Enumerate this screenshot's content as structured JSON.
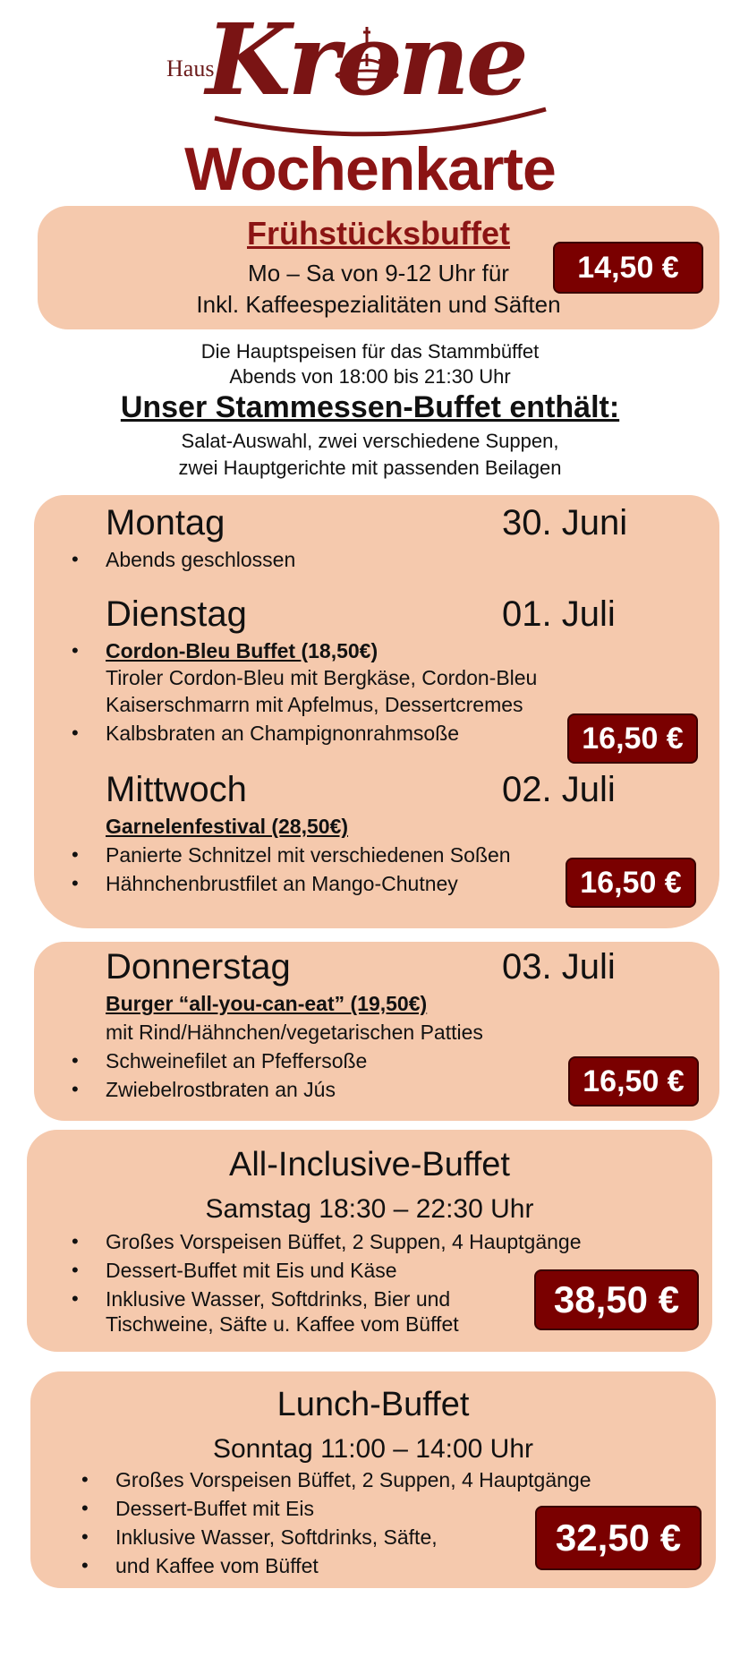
{
  "logo": {
    "small": "Haus",
    "word": "Krone"
  },
  "title": "Wochenkarte",
  "breakfast": {
    "title": "Frühstücksbuffet",
    "line1": "Mo – Sa von 9-12 Uhr für",
    "line2": "Inkl. Kaffeespezialitäten und Säften",
    "price": "14,50 €"
  },
  "info": {
    "line1": "Die Hauptspeisen für das Stammbüffet",
    "line2": "Abends von 18:00 bis 21:30 Uhr"
  },
  "stamm": {
    "title": "Unser Stammessen-Buffet enthält:",
    "line1": "Salat-Auswahl, zwei verschiedene Suppen,",
    "line2": "zwei Hauptgerichte mit passenden Beilagen"
  },
  "monday": {
    "day": "Montag",
    "date": "30. Juni",
    "item1": "Abends geschlossen"
  },
  "tuesday": {
    "day": "Dienstag",
    "date": "01. Juli",
    "special_name": "Cordon-Bleu Buffet ",
    "special_price": " (18,50€)",
    "desc1": "Tiroler Cordon-Bleu mit Bergkäse, Cordon-Bleu",
    "desc2": "Kaiserschmarrn mit Apfelmus, Dessertcremes",
    "item2": "Kalbsbraten an Champignonrahmsoße",
    "price": "16,50 €"
  },
  "wednesday": {
    "day": "Mittwoch",
    "date": "02. Juli",
    "special": "Garnelenfestival (28,50€)",
    "item1": "Panierte Schnitzel mit verschiedenen Soßen",
    "item2": "Hähnchenbrustfilet an Mango-Chutney",
    "price": "16,50 €"
  },
  "thursday": {
    "day": "Donnerstag",
    "date": "03. Juli",
    "special": "Burger “all-you-can-eat” (19,50€)",
    "desc": "mit Rind/Hähnchen/vegetarischen Patties",
    "item1": "Schweinefilet an Pfeffersoße",
    "item2": "Zwiebelrostbraten an Jús",
    "price": "16,50 €"
  },
  "allinclusive": {
    "title": "All-Inclusive-Buffet",
    "sub": "Samstag 18:30 – 22:30 Uhr",
    "item1": "Großes Vorspeisen Büffet, 2 Suppen, 4 Hauptgänge",
    "item2": "Dessert-Buffet mit Eis und Käse",
    "item3a": "Inklusive Wasser, Softdrinks, Bier und",
    "item3b": "Tischweine, Säfte u. Kaffee vom Büffet",
    "price": "38,50 €"
  },
  "lunch": {
    "title": "Lunch-Buffet",
    "sub": "Sonntag  11:00 – 14:00 Uhr",
    "item1": "Großes Vorspeisen Büffet, 2 Suppen, 4 Hauptgänge",
    "item2": "Dessert-Buffet mit Eis",
    "item3": "Inklusive Wasser, Softdrinks, Säfte,",
    "item4": "und Kaffee vom Büffet",
    "price": "32,50 €"
  }
}
